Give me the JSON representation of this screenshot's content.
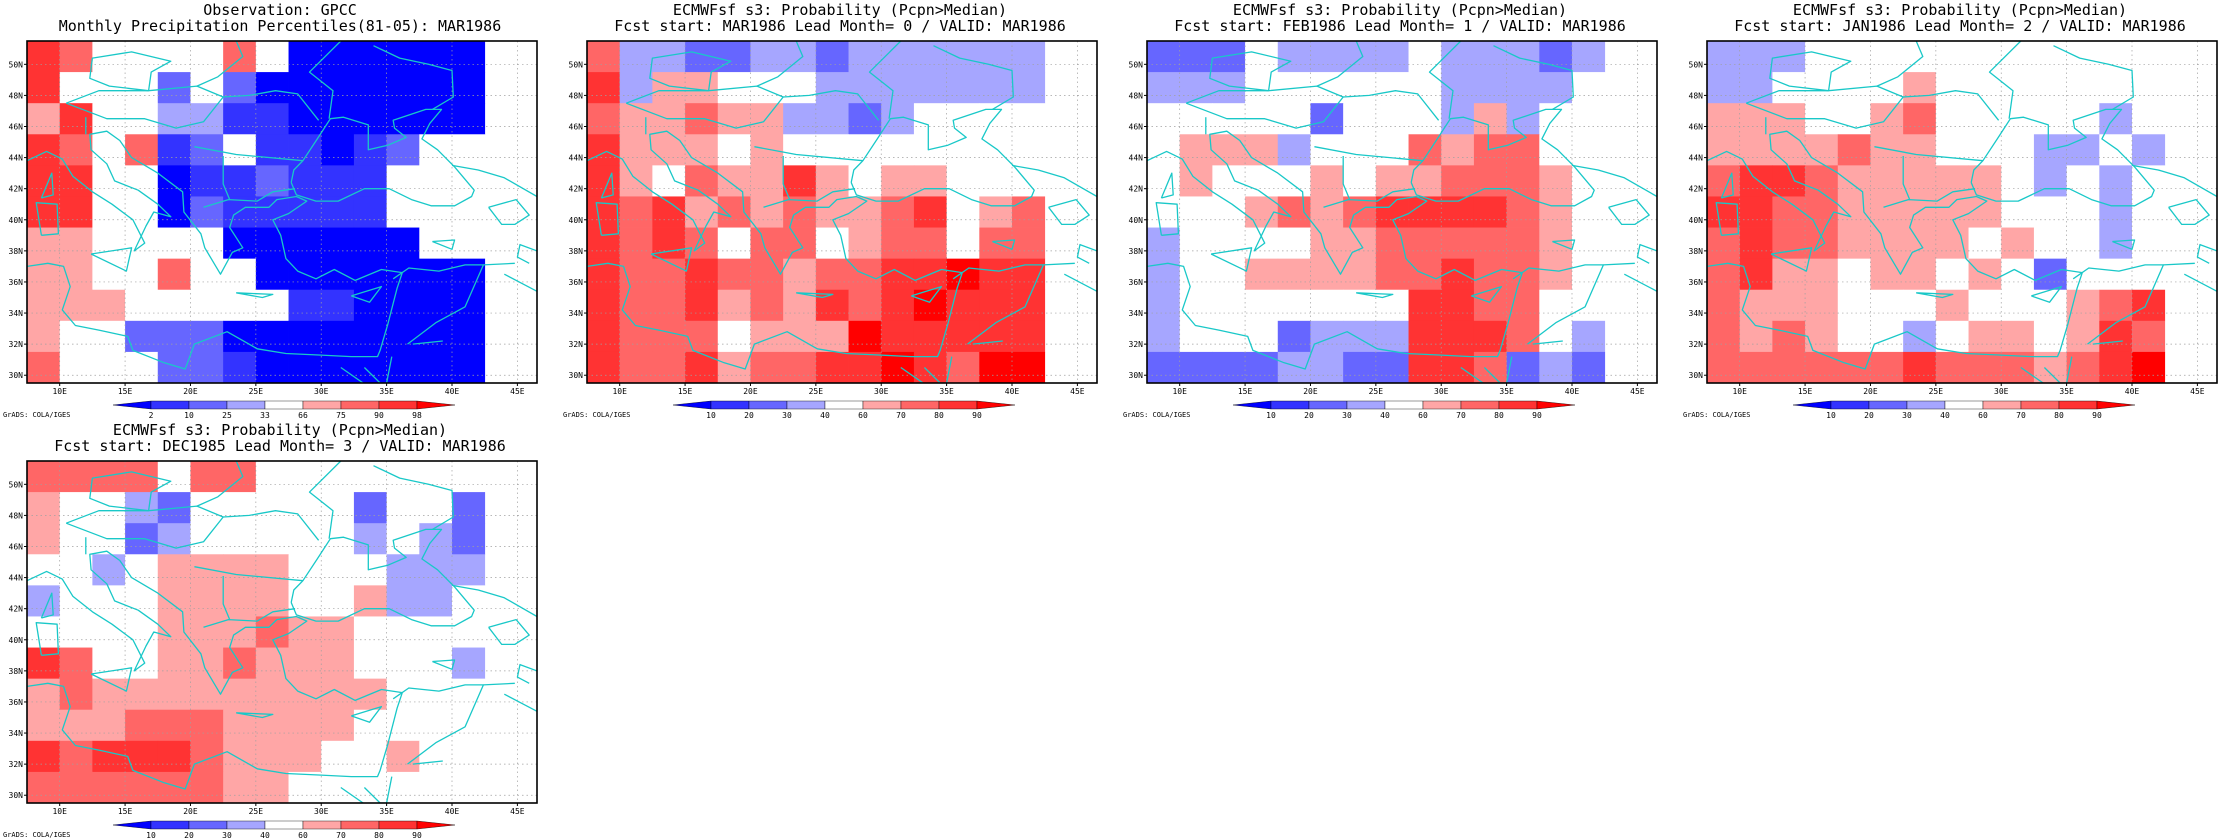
{
  "credit": "GrADS: COLA/IGES",
  "palette": {
    "percentile": [
      "#0000ff",
      "#3333ff",
      "#6666ff",
      "#a6a6ff",
      "#ffffff",
      "#ffa6a6",
      "#ff6666",
      "#ff3333",
      "#ff0000"
    ],
    "probability": [
      "#0000ff",
      "#3333ff",
      "#6666ff",
      "#a6a6ff",
      "#ffffff",
      "#ffa6a6",
      "#ff6666",
      "#ff3333",
      "#ff0000"
    ],
    "coast": "#19c8c8"
  },
  "chart_data": [
    {
      "type": "heatmap",
      "title": "Observation: GPCC",
      "subtitle": "Monthly Precipitation Percentiles(81-05): MAR1986",
      "colorbar_labels": [
        "2",
        "10",
        "25",
        "33",
        "66",
        "75",
        "90",
        "98"
      ],
      "palette": "percentile",
      "x_ticks": [
        "10E",
        "15E",
        "20E",
        "25E",
        "30E",
        "35E",
        "40E",
        "45E"
      ],
      "y_ticks": [
        "30N",
        "32N",
        "34N",
        "36N",
        "38N",
        "40N",
        "42N",
        "44N",
        "46N",
        "48N",
        "50N"
      ],
      "xlim": [
        7.5,
        46.5
      ],
      "ylim": [
        29.5,
        51.5
      ],
      "grid_lon": [
        7.5,
        46.5,
        2.5
      ],
      "grid_lat": [
        29.5,
        51.5,
        2
      ],
      "cell_classes": [
        "76444464000000",
        "74442420000000",
        "57443311000000",
        "76461241101244",
        "77440112111444",
        "77440211111444",
        "55444400000044",
        "55446440000000",
        "55544444110000",
        "54422200000000",
        "64442210000000"
      ]
    },
    {
      "type": "heatmap",
      "title": "ECMWFsf s3: Probability (Pcpn>Median)",
      "subtitle": "Fcst start: MAR1986  Lead Month= 0 / VALID: MAR1986",
      "colorbar_labels": [
        "10",
        "20",
        "30",
        "40",
        "60",
        "70",
        "80",
        "90"
      ],
      "palette": "probability",
      "x_ticks": [
        "10E",
        "15E",
        "20E",
        "25E",
        "30E",
        "35E",
        "40E",
        "45E"
      ],
      "y_ticks": [
        "30N",
        "32N",
        "34N",
        "36N",
        "38N",
        "40N",
        "42N",
        "44N",
        "46N",
        "48N",
        "50N"
      ],
      "xlim": [
        7.5,
        46.5
      ],
      "ylim": [
        29.5,
        51.5
      ],
      "grid_lon": [
        7.5,
        46.5,
        2.5
      ],
      "grid_lat": [
        29.5,
        51.5,
        2
      ],
      "cell_classes": [
        "63322332333333",
        "73554443333333",
        "65565533234444",
        "75554544444444",
        "75465575455444",
        "76756565567456",
        "76764664566466",
        "76676656677877",
        "76675657678777",
        "76664555877777",
        "76675667787688"
      ]
    },
    {
      "type": "heatmap",
      "title": "ECMWFsf s3: Probability (Pcpn>Median)",
      "subtitle": "Fcst start: FEB1986  Lead Month= 1 / VALID: MAR1986",
      "colorbar_labels": [
        "10",
        "20",
        "30",
        "40",
        "60",
        "70",
        "80",
        "90"
      ],
      "palette": "probability",
      "x_ticks": [
        "10E",
        "15E",
        "20E",
        "25E",
        "30E",
        "35E",
        "40E",
        "45E"
      ],
      "y_ticks": [
        "30N",
        "32N",
        "34N",
        "36N",
        "38N",
        "40N",
        "42N",
        "44N",
        "46N",
        "48N",
        "50N"
      ],
      "xlim": [
        7.5,
        46.5
      ],
      "ylim": [
        29.5,
        51.5
      ],
      "grid_lon": [
        7.5,
        46.5,
        2.5
      ],
      "grid_lat": [
        29.5,
        51.5,
        2
      ],
      "cell_classes": [
        "22243333433323",
        "33344444433334",
        "44444244435344",
        "45553444656644",
        "45444545566654",
        "44456567777654",
        "34444556666654",
        "34455556676654",
        "34444444776644",
        "34442333777643",
        "22223322776232"
      ]
    },
    {
      "type": "heatmap",
      "title": "ECMWFsf s3: Probability (Pcpn>Median)",
      "subtitle": "Fcst start: JAN1986  Lead Month= 2 / VALID: MAR1986",
      "colorbar_labels": [
        "10",
        "20",
        "30",
        "40",
        "60",
        "70",
        "80",
        "90"
      ],
      "palette": "probability",
      "x_ticks": [
        "10E",
        "15E",
        "20E",
        "25E",
        "30E",
        "35E",
        "40E",
        "45E"
      ],
      "y_ticks": [
        "30N",
        "32N",
        "34N",
        "36N",
        "38N",
        "40N",
        "42N",
        "44N",
        "46N",
        "48N",
        "50N"
      ],
      "xlim": [
        7.5,
        46.5
      ],
      "ylim": [
        29.5,
        51.5
      ],
      "grid_lon": [
        7.5,
        46.5,
        2.5
      ],
      "grid_lat": [
        29.5,
        51.5,
        2
      ],
      "cell_classes": [
        "33344444444444",
        "33444454444444",
        "55544564444434",
        "55556554443343",
        "67765555543434",
        "77665555544434",
        "67665555454434",
        "67554554542444",
        "65554445444567",
        "65654434554576",
        "66666676665678"
      ]
    },
    {
      "type": "heatmap",
      "title": "ECMWFsf s3: Probability (Pcpn>Median)",
      "subtitle": "Fcst start: DEC1985  Lead Month= 3 / VALID: MAR1986",
      "colorbar_labels": [
        "10",
        "20",
        "30",
        "40",
        "60",
        "70",
        "80",
        "90"
      ],
      "palette": "probability",
      "x_ticks": [
        "10E",
        "15E",
        "20E",
        "25E",
        "30E",
        "35E",
        "40E",
        "45E"
      ],
      "y_ticks": [
        "30N",
        "32N",
        "34N",
        "36N",
        "38N",
        "40N",
        "42N",
        "44N",
        "46N",
        "48N",
        "50N"
      ],
      "xlim": [
        7.5,
        46.5
      ],
      "ylim": [
        29.5,
        51.5
      ],
      "grid_lon": [
        7.5,
        46.5,
        2.5
      ],
      "grid_lat": [
        29.5,
        51.5,
        2
      ],
      "cell_classes": [
        "66664664444444",
        "54432444442442",
        "54423444443432",
        "44345555444333",
        "34445555445334",
        "44445556554444",
        "76445565554443",
        "56555555555444",
        "55566655554444",
        "76777655544544",
        "66666655444444"
      ]
    }
  ]
}
